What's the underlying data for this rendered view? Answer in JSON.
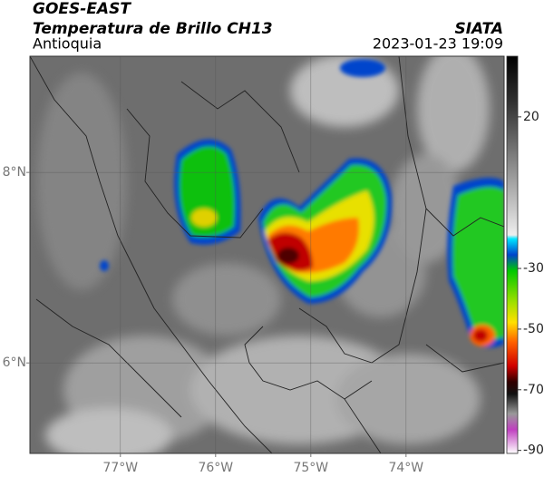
{
  "header": {
    "title": "GOES-EAST",
    "subtitle": "Temperatura de Brillo CH13",
    "region": "Antioquia",
    "source": "SIATA",
    "datetime": "2023-01-23 19:09"
  },
  "map": {
    "xlim": [
      -77.95,
      -72.97
    ],
    "ylim": [
      5.05,
      9.22
    ],
    "xticks": [
      {
        "value": -77,
        "label": "77°W"
      },
      {
        "value": -76,
        "label": "76°W"
      },
      {
        "value": -75,
        "label": "75°W"
      },
      {
        "value": -74,
        "label": "74°W"
      }
    ],
    "yticks": [
      {
        "value": 8,
        "label": "8°N"
      },
      {
        "value": 6,
        "label": "6°N"
      }
    ],
    "grid": true
  },
  "colorbar": {
    "lim": [
      -91,
      40
    ],
    "ticks": [
      20,
      -30,
      -50,
      -70,
      -90
    ]
  }
}
